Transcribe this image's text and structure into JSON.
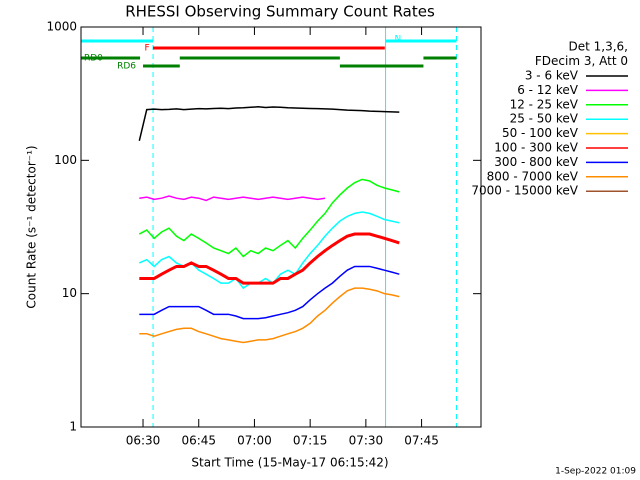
{
  "chart_data": {
    "type": "line",
    "title": "RHESSI Observing Summary Count Rates",
    "x_label": "Start Time (15-May-17 06:15:42)",
    "y_label": "Count Rate (s⁻¹ detector⁻¹)",
    "legend_header": [
      "Det 1,3,6,",
      "FDecim 3, Att 0"
    ],
    "footnote": "1-Sep-2022 01:09",
    "log_y": true,
    "xlim": [
      373.3,
      481
    ],
    "xticks": [
      {
        "value": 390,
        "label": "06:30"
      },
      {
        "value": 405,
        "label": "06:45"
      },
      {
        "value": 420,
        "label": "07:00"
      },
      {
        "value": 435,
        "label": "07:15"
      },
      {
        "value": 450,
        "label": "07:30"
      },
      {
        "value": 465,
        "label": "07:45"
      }
    ],
    "ylim": [
      1,
      1000
    ],
    "yticks": [
      1,
      10,
      100,
      1000
    ],
    "x": [
      389,
      391,
      393,
      395,
      397,
      399,
      401,
      403,
      405,
      407,
      409,
      411,
      413,
      415,
      417,
      419,
      421,
      423,
      425,
      427,
      429,
      431,
      433,
      435,
      437,
      439,
      441,
      443,
      445,
      447,
      449,
      451,
      453,
      455,
      457,
      459
    ],
    "series": [
      {
        "name": "3 - 6 keV",
        "color": "#000000",
        "values": [
          140,
          240,
          242,
          240,
          241,
          243,
          240,
          242,
          244,
          243,
          245,
          246,
          244,
          247,
          248,
          250,
          252,
          249,
          251,
          250,
          248,
          247,
          246,
          245,
          244,
          243,
          242,
          240,
          238,
          237,
          236,
          234,
          233,
          232,
          231,
          230
        ]
      },
      {
        "name": "6 - 12 keV",
        "color": "#ff00ff",
        "values": [
          52,
          53,
          51,
          52,
          54,
          52,
          51,
          53,
          52,
          50,
          53,
          52,
          51,
          52,
          53,
          52,
          51,
          52,
          53,
          52,
          51,
          52,
          53,
          52,
          51,
          52,
          null,
          null,
          null,
          null,
          null,
          null,
          null,
          null,
          null,
          null
        ]
      },
      {
        "name": "12 - 25 keV",
        "color": "#00ff00",
        "values": [
          28,
          30,
          26,
          29,
          31,
          27,
          25,
          28,
          26,
          24,
          22,
          21,
          20,
          22,
          19,
          21,
          20,
          22,
          21,
          23,
          25,
          22,
          26,
          30,
          35,
          40,
          48,
          55,
          62,
          68,
          72,
          70,
          65,
          62,
          60,
          58
        ]
      },
      {
        "name": "25 - 50 keV",
        "color": "#00ffff",
        "values": [
          17,
          18,
          16,
          18,
          19,
          17,
          16,
          17,
          15,
          14,
          13,
          12,
          12,
          13,
          11,
          12,
          12,
          13,
          12,
          14,
          15,
          14,
          17,
          20,
          23,
          27,
          31,
          35,
          38,
          40,
          41,
          40,
          38,
          36,
          35,
          34
        ]
      },
      {
        "name": "50 - 100 keV",
        "color": "#ffc000"
      },
      {
        "name": "100 - 300 keV",
        "color": "#ff0000",
        "values": [
          13,
          13,
          13,
          14,
          15,
          16,
          16,
          17,
          16,
          16,
          15,
          14,
          13,
          13,
          12,
          12,
          12,
          12,
          12,
          13,
          13,
          14,
          15,
          17,
          19,
          21,
          23,
          25,
          27,
          28,
          28,
          28,
          27,
          26,
          25,
          24
        ]
      },
      {
        "name": "300 - 800 keV",
        "color": "#0000ff",
        "values": [
          7,
          7,
          7,
          7.5,
          8,
          8,
          8,
          8,
          8,
          7.5,
          7,
          7,
          7,
          6.8,
          6.5,
          6.5,
          6.5,
          6.6,
          6.8,
          7,
          7.2,
          7.5,
          8,
          9,
          10,
          11,
          12,
          13.5,
          15,
          16,
          16,
          16,
          15.5,
          15,
          14.5,
          14
        ]
      },
      {
        "name": "800 - 7000 keV",
        "color": "#ff8c00",
        "values": [
          5,
          5,
          4.8,
          5,
          5.2,
          5.4,
          5.5,
          5.5,
          5.2,
          5,
          4.8,
          4.6,
          4.5,
          4.4,
          4.3,
          4.4,
          4.5,
          4.5,
          4.6,
          4.8,
          5,
          5.2,
          5.5,
          6,
          6.8,
          7.5,
          8.5,
          9.5,
          10.5,
          11,
          11,
          10.8,
          10.5,
          10,
          9.8,
          9.5
        ]
      },
      {
        "name": "7000 - 15000 keV",
        "color": "#a0522d"
      }
    ],
    "flags": [
      {
        "label": "N",
        "color": "#00ffff",
        "segments": [
          [
            373.3,
            392.7
          ],
          [
            455.3,
            474.4
          ]
        ]
      },
      {
        "label": "F",
        "color": "#ff0000",
        "segments": [
          [
            392.7,
            455.1
          ]
        ]
      },
      {
        "label": "RD0",
        "color": "#008000",
        "segments": [
          [
            373.3,
            389.2
          ],
          [
            399.9,
            443.0
          ],
          [
            465.5,
            474.4
          ]
        ]
      },
      {
        "label": "RD6",
        "color": "#008000",
        "segments": [
          [
            390,
            399.9
          ],
          [
            443.0,
            465.5
          ]
        ]
      }
    ],
    "markers": [
      {
        "x": 373.3,
        "color": "#00ffff",
        "style": "solid"
      },
      {
        "x": 392.7,
        "color": "#00ffff",
        "style": "dashed"
      },
      {
        "x": 455.3,
        "color": "#00ffff",
        "style": "solid"
      },
      {
        "x": 474.4,
        "color": "#00ffff",
        "style": "dashed"
      }
    ]
  }
}
